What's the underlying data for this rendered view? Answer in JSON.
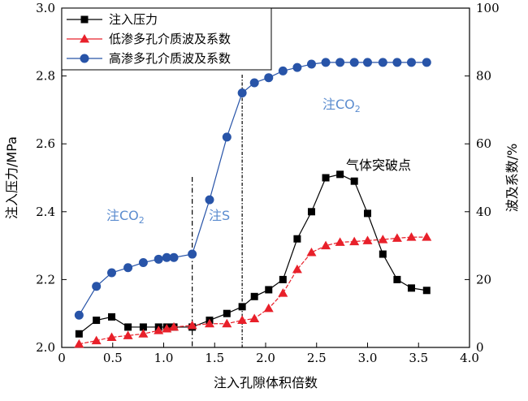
{
  "chart_data": {
    "type": "line",
    "xlabel": "注入孔隙体积倍数",
    "ylabel_left": "注入压力/MPa",
    "ylabel_right": "波及系数/%",
    "xlim": [
      0,
      4.0
    ],
    "ylim_left": [
      2.0,
      3.0
    ],
    "ylim_right": [
      0,
      100
    ],
    "xticks": [
      "0",
      "0.5",
      "1.0",
      "1.5",
      "2.0",
      "2.5",
      "3.0",
      "3.5",
      "4.0"
    ],
    "yticks_left": [
      "2.0",
      "2.2",
      "2.4",
      "2.6",
      "2.8",
      "3.0"
    ],
    "yticks_right": [
      "0",
      "20",
      "40",
      "60",
      "80",
      "100"
    ],
    "legend_position": "top-left",
    "grid": false,
    "series": [
      {
        "name": "注入压力",
        "axis": "left",
        "marker": "square",
        "color": "#000000",
        "x": [
          0.17,
          0.34,
          0.49,
          0.65,
          0.8,
          0.95,
          1.03,
          1.1,
          1.28,
          1.45,
          1.62,
          1.77,
          1.89,
          2.03,
          2.17,
          2.31,
          2.45,
          2.59,
          2.73,
          2.87,
          3.0,
          3.15,
          3.29,
          3.43,
          3.58
        ],
        "y": [
          2.04,
          2.08,
          2.09,
          2.06,
          2.06,
          2.06,
          2.06,
          2.06,
          2.06,
          2.08,
          2.1,
          2.12,
          2.15,
          2.17,
          2.2,
          2.32,
          2.4,
          2.5,
          2.51,
          2.49,
          2.395,
          2.275,
          2.2,
          2.175,
          2.168
        ]
      },
      {
        "name": "低渗多孔介质波及系数",
        "axis": "right",
        "marker": "triangle",
        "color": "#e8202a",
        "x": [
          0.17,
          0.34,
          0.49,
          0.65,
          0.8,
          0.95,
          1.03,
          1.1,
          1.28,
          1.45,
          1.62,
          1.77,
          1.89,
          2.03,
          2.17,
          2.31,
          2.45,
          2.59,
          2.73,
          2.87,
          3.0,
          3.15,
          3.29,
          3.43,
          3.58
        ],
        "y": [
          1.0,
          2.0,
          3.0,
          3.5,
          4.0,
          5.0,
          5.5,
          6.0,
          6.5,
          7.0,
          7.0,
          8.0,
          8.5,
          11.5,
          16.0,
          23.0,
          28.0,
          30.0,
          31.0,
          31.2,
          31.5,
          31.8,
          32.2,
          32.5,
          32.5
        ]
      },
      {
        "name": "高渗多孔介质波及系数",
        "axis": "right",
        "marker": "circle",
        "color": "#2854a8",
        "x": [
          0.17,
          0.34,
          0.49,
          0.65,
          0.8,
          0.95,
          1.03,
          1.1,
          1.28,
          1.45,
          1.62,
          1.77,
          1.89,
          2.03,
          2.17,
          2.31,
          2.45,
          2.59,
          2.73,
          2.87,
          3.0,
          3.15,
          3.29,
          3.43,
          3.58
        ],
        "y": [
          9.5,
          18.0,
          22.0,
          23.5,
          25.0,
          26.0,
          26.5,
          26.5,
          27.5,
          43.5,
          62.0,
          75.0,
          78.0,
          79.5,
          81.5,
          82.5,
          83.5,
          84.0,
          84.0,
          84.0,
          84.0,
          84.0,
          84.0,
          84.0,
          84.0
        ]
      }
    ],
    "vlines": [
      1.28,
      1.77
    ],
    "annotations": {
      "co2_left_main": "注CO",
      "co2_left_sub": "2",
      "s_label": "注S",
      "co2_right_main": "注CO",
      "co2_right_sub": "2",
      "breakthrough": "气体突破点"
    }
  }
}
